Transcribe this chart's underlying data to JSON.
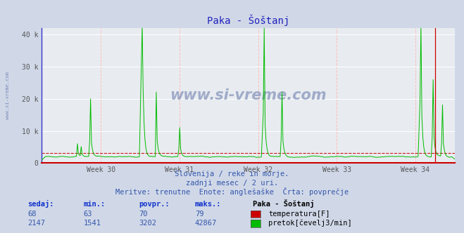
{
  "title": "Paka - Šoštanj",
  "background_color": "#d0d8e8",
  "plot_bg_color": "#e8ecf0",
  "grid_color_h": "#ffffff",
  "grid_color_v": "#ffbbbb",
  "ylim": [
    0,
    42000
  ],
  "yticks": [
    0,
    10000,
    20000,
    30000,
    40000
  ],
  "ytick_labels": [
    "0",
    "10 k",
    "20 k",
    "30 k",
    "40 k"
  ],
  "xlim": [
    29.0,
    34.25
  ],
  "week_tick_positions": [
    29.75,
    30.75,
    31.75,
    32.75,
    33.75
  ],
  "week_labels": [
    "Week 30",
    "Week 31",
    "Week 32",
    "Week 33",
    "Week 34"
  ],
  "flow_color": "#00bb00",
  "temp_color": "#cc0000",
  "avg_line_color": "#cc0000",
  "avg_flow_val": 3202,
  "current_time_x": 34.0,
  "spine_color": "#3333cc",
  "subtitle1": "Slovenija / reke in morje.",
  "subtitle2": "zadnji mesec / 2 uri.",
  "subtitle3": "Meritve: trenutne  Enote: anglešaške  Črta: povprečje",
  "legend_title": "Paka - Šoštanj",
  "legend_items": [
    {
      "label": "temperatura[F]",
      "color": "#cc0000"
    },
    {
      "label": "pretok[čevelj3/min]",
      "color": "#00bb00"
    }
  ],
  "table_headers": [
    "sedaj:",
    "min.:",
    "povpr.:",
    "maks.:"
  ],
  "table_data": [
    [
      68,
      63,
      70,
      79
    ],
    [
      2147,
      1541,
      3202,
      42867
    ]
  ],
  "watermark": "www.si-vreme.com",
  "watermark_color": "#6677aa",
  "left_label": "www.si-vreme.com",
  "left_label_color": "#6677aa",
  "title_color": "#2222bb",
  "text_color": "#3355aa",
  "tick_color": "#555555"
}
